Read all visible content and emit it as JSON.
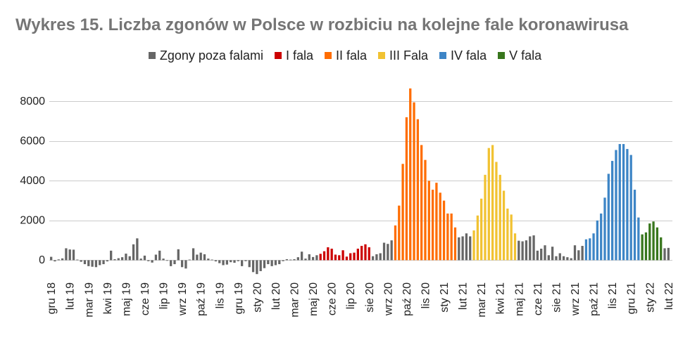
{
  "chart_data": {
    "type": "bar",
    "title": "Wykres 15. Liczba zgonów w Polsce w rozbiciu na kolejne fale koronawirusa",
    "xlabel": "",
    "ylabel": "",
    "ylim": [
      -800,
      9000
    ],
    "yticks": [
      0,
      2000,
      4000,
      6000,
      8000
    ],
    "grid": true,
    "legend_position": "top",
    "x_tick_labels": [
      "gru 18",
      "lut 19",
      "mar 19",
      "kwi 19",
      "maj 19",
      "cze 19",
      "lip 19",
      "wrz 19",
      "paź 19",
      "lis 19",
      "gru 19",
      "sty 20",
      "lut 20",
      "mar 20",
      "maj 20",
      "cze 20",
      "lip 20",
      "sie 20",
      "wrz 20",
      "paź 20",
      "lis 20",
      "sty 21",
      "lut 21",
      "mar 21",
      "kwi 21",
      "maj 21",
      "cze 21",
      "sie 21",
      "wrz 21",
      "paź 21",
      "lis 21",
      "gru 21",
      "sty 22",
      "lut 22"
    ],
    "series": [
      {
        "name": "Zgony poza falami",
        "color": "#666666"
      },
      {
        "name": "I fala",
        "color": "#cc0000"
      },
      {
        "name": "II fala",
        "color": "#ff6d01"
      },
      {
        "name": "III Fala",
        "color": "#f1c232"
      },
      {
        "name": "IV fala",
        "color": "#3d85c6"
      },
      {
        "name": "V fala",
        "color": "#38761d"
      }
    ],
    "runs": [
      {
        "series": 0,
        "values": [
          170,
          -60,
          40,
          90,
          600,
          540,
          530,
          30,
          -80,
          -200,
          -300,
          -330,
          -350,
          -250,
          -200,
          -60,
          480,
          50,
          100,
          150,
          330,
          200,
          800,
          1100,
          80,
          230,
          -50,
          -120,
          280,
          480,
          80,
          -30,
          -300,
          -200,
          550,
          -350,
          -420,
          30,
          600,
          280,
          380,
          300,
          80,
          30,
          -60,
          -150,
          -250,
          -220,
          -100,
          -130,
          -50,
          -300,
          -50,
          -350,
          -600,
          -700,
          -550,
          -400,
          -200,
          -300,
          -250,
          -200,
          -50,
          50,
          30,
          50,
          150,
          430,
          80,
          300,
          160,
          250
        ]
      },
      {
        "series": 1,
        "values": [
          320,
          450,
          650,
          580,
          280,
          250,
          500,
          180,
          350,
          380,
          580,
          720,
          800,
          650
        ]
      },
      {
        "series": 0,
        "values": [
          200,
          300,
          350,
          880,
          820,
          1000
        ]
      },
      {
        "series": 2,
        "values": [
          1750,
          2750,
          4850,
          7200,
          8650,
          7950,
          7100,
          5800,
          5050,
          4000,
          3550,
          3900,
          3400,
          3000,
          2350,
          2350,
          1650
        ]
      },
      {
        "series": 0,
        "values": [
          1150,
          1200,
          1350,
          1200
        ]
      },
      {
        "series": 3,
        "values": [
          1500,
          2250,
          3100,
          4300,
          5650,
          5800,
          4950,
          4300,
          3500,
          2600,
          2300,
          1350
        ]
      },
      {
        "series": 0,
        "values": [
          980,
          950,
          1000,
          1200,
          1250,
          480,
          580,
          750,
          250,
          680,
          200,
          350,
          200,
          150,
          100,
          750,
          500,
          720
        ]
      },
      {
        "series": 4,
        "values": [
          1050,
          1100,
          1350,
          2000,
          2350,
          3150,
          4350,
          5000,
          5550,
          5850,
          5850,
          5600,
          5300,
          3550,
          2150
        ]
      },
      {
        "series": 5,
        "values": [
          1300,
          1400,
          1850,
          1950,
          1650,
          1150
        ]
      },
      {
        "series": 0,
        "values": [
          600,
          620
        ]
      }
    ]
  }
}
